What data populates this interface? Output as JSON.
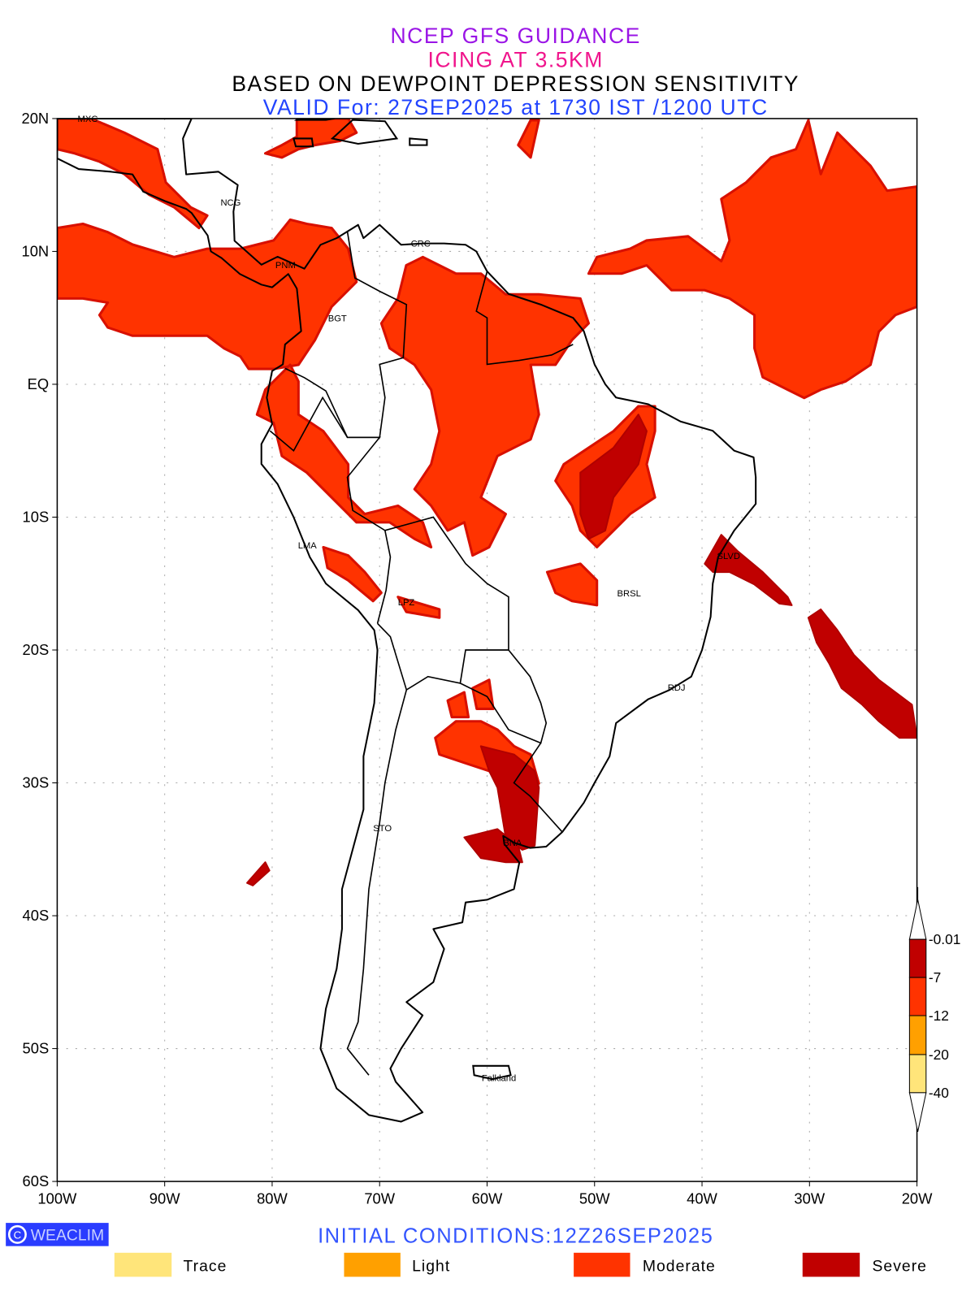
{
  "titles": {
    "line1": "NCEP GFS GUIDANCE",
    "line2": "ICING AT 3.5KM",
    "line3": "BASED ON DEWPOINT DEPRESSION SENSITIVITY",
    "line4": "VALID For: 27SEP2025 at 1730 IST /1200 UTC"
  },
  "colors": {
    "line1": "#9a14e6",
    "line2": "#f0148c",
    "line3": "#000000",
    "line4": "#2244ff",
    "trace": "#ffe57a",
    "light": "#ffa000",
    "moderate": "#ff3300",
    "severe": "#c00000"
  },
  "axes": {
    "lat_labels": [
      "20N",
      "10N",
      "EQ",
      "10S",
      "20S",
      "30S",
      "40S",
      "50S",
      "60S"
    ],
    "lon_labels": [
      "100W",
      "90W",
      "80W",
      "70W",
      "60W",
      "50W",
      "40W",
      "30W",
      "20W"
    ]
  },
  "cities": [
    {
      "name": "MXC",
      "lon": -98.1,
      "lat": 20.0
    },
    {
      "name": "NCG",
      "lon": -84.8,
      "lat": 13.7
    },
    {
      "name": "PNM",
      "lon": -79.7,
      "lat": 9.0
    },
    {
      "name": "CRC",
      "lon": -67.1,
      "lat": 10.6
    },
    {
      "name": "BGT",
      "lon": -74.8,
      "lat": 5.0
    },
    {
      "name": "LMA",
      "lon": -77.6,
      "lat": -12.1
    },
    {
      "name": "LPZ",
      "lon": -68.3,
      "lat": -16.4
    },
    {
      "name": "BRSL",
      "lon": -47.9,
      "lat": -15.7
    },
    {
      "name": "SLVD",
      "lon": -38.6,
      "lat": -12.9
    },
    {
      "name": "RDJ",
      "lon": -43.2,
      "lat": -22.8
    },
    {
      "name": "STO",
      "lon": -70.6,
      "lat": -33.4
    },
    {
      "name": "BNA",
      "lon": -58.5,
      "lat": -34.5
    },
    {
      "name": "Falkland",
      "lon": -60.5,
      "lat": -52.2
    }
  ],
  "colorbar": {
    "labels": [
      "-0.01",
      "-7",
      "-12",
      "-20",
      "-40"
    ]
  },
  "footer": {
    "logo": "WEACLIM",
    "initial": "INITIAL CONDITIONS:12Z26SEP2025"
  },
  "legend": [
    {
      "label": "Trace",
      "color": "#ffe57a"
    },
    {
      "label": "Light",
      "color": "#ffa000"
    },
    {
      "label": "Moderate",
      "color": "#ff3300"
    },
    {
      "label": "Severe",
      "color": "#c00000"
    }
  ]
}
